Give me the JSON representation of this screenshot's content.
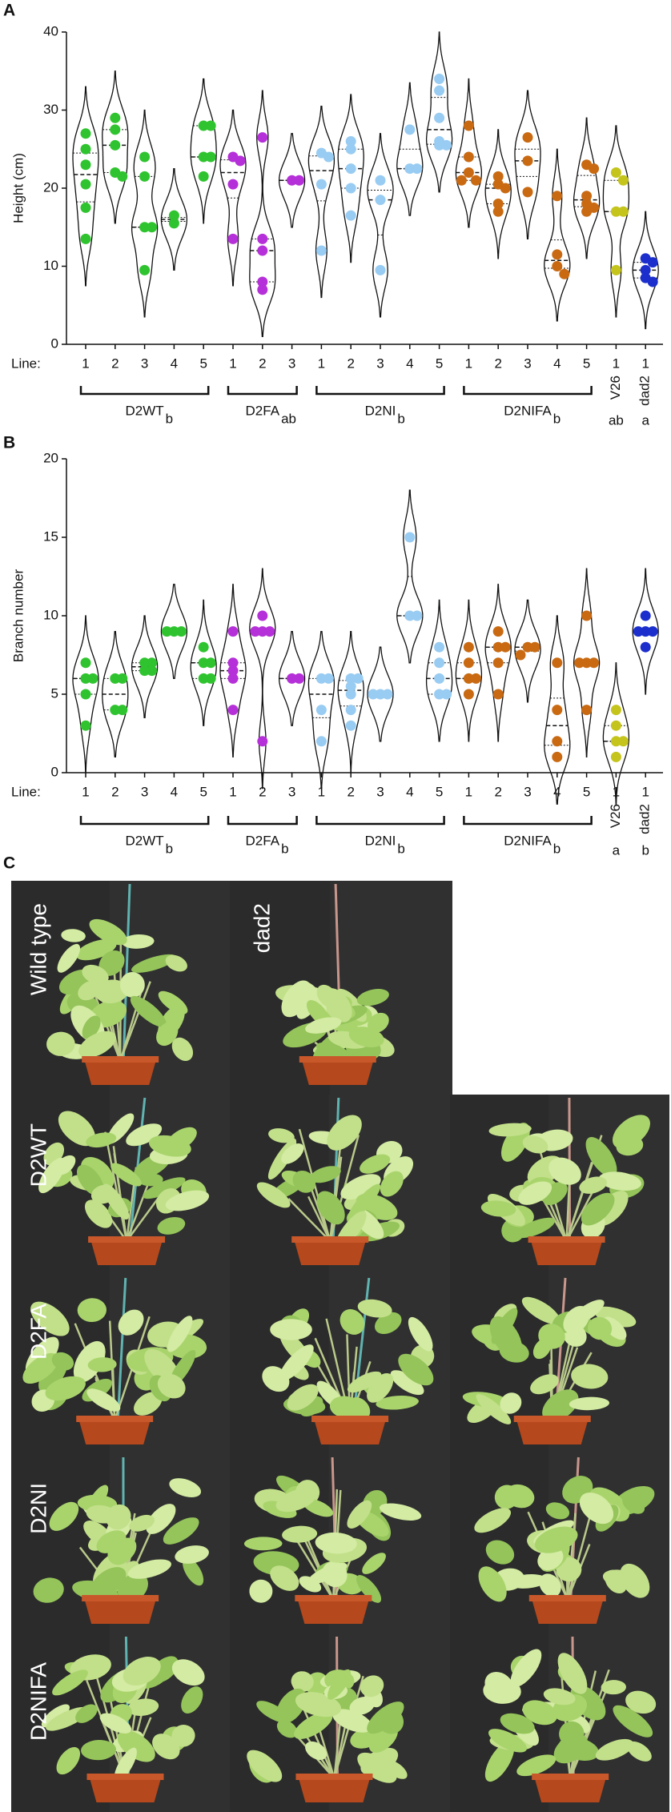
{
  "chart_data": [
    {
      "type": "violin",
      "panel": "A",
      "ylabel": "Height (cm)",
      "line_label": "Line:",
      "ylim": [
        0,
        40
      ],
      "yticks": [
        0,
        10,
        20,
        30,
        40
      ],
      "groups": [
        {
          "name": "D2WT",
          "letter": "b",
          "color": "#2fc42f",
          "lines": [
            {
              "label": "1",
              "values": [
                27,
                25,
                23,
                20.5,
                17.5,
                13.5
              ]
            },
            {
              "label": "2",
              "values": [
                29,
                27.5,
                25.5,
                22,
                21.5
              ]
            },
            {
              "label": "3",
              "values": [
                24,
                21.5,
                15,
                15,
                9.5
              ]
            },
            {
              "label": "4",
              "values": [
                16.5,
                15.5
              ]
            },
            {
              "label": "5",
              "values": [
                28,
                28,
                24,
                24,
                21.5
              ]
            }
          ]
        },
        {
          "name": "D2FA",
          "letter": "ab",
          "color": "#b530d8",
          "lines": [
            {
              "label": "1",
              "values": [
                24,
                23.5,
                20.5,
                13.5
              ]
            },
            {
              "label": "2",
              "values": [
                26.5,
                13.5,
                12,
                8,
                7
              ]
            },
            {
              "label": "3",
              "values": [
                21,
                21
              ]
            }
          ]
        },
        {
          "name": "D2NI",
          "letter": "b",
          "color": "#99ccf2",
          "lines": [
            {
              "label": "1",
              "values": [
                24.5,
                24,
                20.5,
                12
              ]
            },
            {
              "label": "2",
              "values": [
                26,
                25,
                22.5,
                20,
                16.5
              ]
            },
            {
              "label": "3",
              "values": [
                21,
                18.5,
                9.5
              ]
            },
            {
              "label": "4",
              "values": [
                27.5,
                22.5,
                22.5
              ]
            },
            {
              "label": "5",
              "values": [
                34,
                32.5,
                29,
                26,
                25.5,
                25.5
              ]
            }
          ]
        },
        {
          "name": "D2NIFA",
          "letter": "b",
          "color": "#c96a12",
          "lines": [
            {
              "label": "1",
              "values": [
                28,
                24,
                22,
                21,
                21
              ]
            },
            {
              "label": "2",
              "values": [
                21.5,
                20.5,
                20,
                18,
                17
              ]
            },
            {
              "label": "3",
              "values": [
                26.5,
                23.5,
                19.5
              ]
            },
            {
              "label": "4",
              "values": [
                19,
                11.5,
                10,
                9
              ]
            },
            {
              "label": "5",
              "values": [
                23,
                22.5,
                19,
                18,
                17.5,
                17
              ]
            }
          ]
        },
        {
          "name": "V26",
          "letter": "ab",
          "color": "#c4c41c",
          "lines": [
            {
              "label": "1",
              "values": [
                22,
                21,
                17,
                17,
                9.5
              ]
            }
          ]
        },
        {
          "name": "dad2",
          "letter": "a",
          "color": "#1c2fcc",
          "lines": [
            {
              "label": "1",
              "values": [
                11,
                10.5,
                9.5,
                8.5,
                8
              ]
            }
          ]
        }
      ]
    },
    {
      "type": "violin",
      "panel": "B",
      "ylabel": "Branch number",
      "line_label": "Line:",
      "ylim": [
        0,
        20
      ],
      "yticks": [
        0,
        5,
        10,
        15,
        20
      ],
      "groups": [
        {
          "name": "D2WT",
          "letter": "b",
          "color": "#2fc42f",
          "lines": [
            {
              "label": "1",
              "values": [
                7,
                6,
                6,
                5,
                3
              ]
            },
            {
              "label": "2",
              "values": [
                6,
                6,
                4,
                4
              ]
            },
            {
              "label": "3",
              "values": [
                7,
                7,
                6.5,
                6.5
              ]
            },
            {
              "label": "4",
              "values": [
                9,
                9,
                9
              ]
            },
            {
              "label": "5",
              "values": [
                8,
                7,
                7,
                6,
                6
              ]
            }
          ]
        },
        {
          "name": "D2FA",
          "letter": "b",
          "color": "#b530d8",
          "lines": [
            {
              "label": "1",
              "values": [
                9,
                7,
                6.5,
                6,
                4
              ]
            },
            {
              "label": "2",
              "values": [
                10,
                9,
                9,
                9,
                2
              ]
            },
            {
              "label": "3",
              "values": [
                6,
                6
              ]
            }
          ]
        },
        {
          "name": "D2NI",
          "letter": "b",
          "color": "#99ccf2",
          "lines": [
            {
              "label": "1",
              "values": [
                6,
                6,
                4,
                2
              ]
            },
            {
              "label": "2",
              "values": [
                6,
                6,
                5.5,
                5,
                4,
                3
              ]
            },
            {
              "label": "3",
              "values": [
                5,
                5,
                5
              ]
            },
            {
              "label": "4",
              "values": [
                15,
                10,
                10
              ]
            },
            {
              "label": "5",
              "values": [
                8,
                7,
                6,
                5,
                5
              ]
            }
          ]
        },
        {
          "name": "D2NIFA",
          "letter": "b",
          "color": "#c96a12",
          "lines": [
            {
              "label": "1",
              "values": [
                8,
                7,
                6,
                6,
                5
              ]
            },
            {
              "label": "2",
              "values": [
                9,
                8,
                8,
                7,
                5
              ]
            },
            {
              "label": "3",
              "values": [
                8,
                8,
                7.5
              ]
            },
            {
              "label": "4",
              "values": [
                7,
                4,
                2,
                1
              ]
            },
            {
              "label": "5",
              "values": [
                10,
                7,
                7,
                7,
                4
              ]
            }
          ]
        },
        {
          "name": "V26",
          "letter": "a",
          "color": "#c4c41c",
          "lines": [
            {
              "label": "1",
              "values": [
                4,
                3,
                2,
                2,
                1
              ]
            }
          ]
        },
        {
          "name": "dad2",
          "letter": "b",
          "color": "#1c2fcc",
          "lines": [
            {
              "label": "1",
              "values": [
                10,
                9,
                9,
                9,
                8
              ]
            }
          ]
        }
      ]
    }
  ],
  "photo_panel": {
    "panel": "C",
    "labels": [
      "Wild type",
      "dad2",
      "D2WT",
      "D2FA",
      "D2NI",
      "D2NIFA"
    ]
  }
}
